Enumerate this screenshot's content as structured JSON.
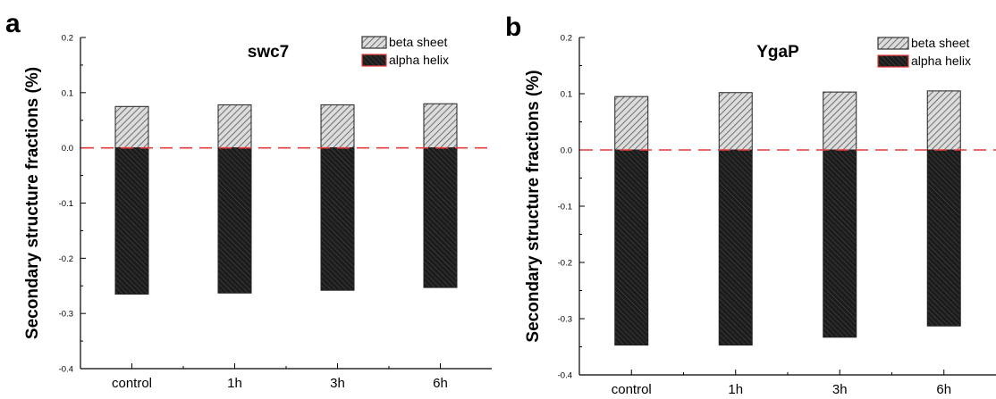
{
  "chart_data": [
    {
      "panel_label": "a",
      "type": "bar",
      "title": "swc7",
      "ylabel": "Secondary structure fractions (%)",
      "xlabel": "",
      "ylim": [
        -0.4,
        0.2
      ],
      "yticks": [
        "0.2",
        "0.1",
        "0.0",
        "-0.1",
        "-0.2",
        "-0.3",
        "-0.4"
      ],
      "categories": [
        "control",
        "1h",
        "3h",
        "6h"
      ],
      "series": [
        {
          "name": "beta sheet",
          "values": [
            0.075,
            0.078,
            0.078,
            0.08
          ],
          "color": "#d8d8d8"
        },
        {
          "name": "alpha helix",
          "values": [
            -0.265,
            -0.263,
            -0.258,
            -0.253
          ],
          "color": "#1a1a1a"
        }
      ],
      "reference_line": {
        "y": 0.0,
        "color": "#e83a3a",
        "style": "dashed"
      },
      "legend_position": "top-right",
      "grid": false
    },
    {
      "panel_label": "b",
      "type": "bar",
      "title": "YgaP",
      "ylabel": "Secondary structure fractions (%)",
      "xlabel": "",
      "ylim": [
        -0.4,
        0.2
      ],
      "yticks": [
        "0.2",
        "0.1",
        "0.0",
        "-0.1",
        "-0.2",
        "-0.3",
        "-0.4"
      ],
      "categories": [
        "control",
        "1h",
        "3h",
        "6h"
      ],
      "series": [
        {
          "name": "beta sheet",
          "values": [
            0.095,
            0.102,
            0.103,
            0.105
          ],
          "color": "#d8d8d8"
        },
        {
          "name": "alpha helix",
          "values": [
            -0.347,
            -0.347,
            -0.333,
            -0.313
          ],
          "color": "#1a1a1a"
        }
      ],
      "reference_line": {
        "y": 0.0,
        "color": "#e83a3a",
        "style": "dashed"
      },
      "legend_position": "top-right",
      "grid": false
    }
  ]
}
